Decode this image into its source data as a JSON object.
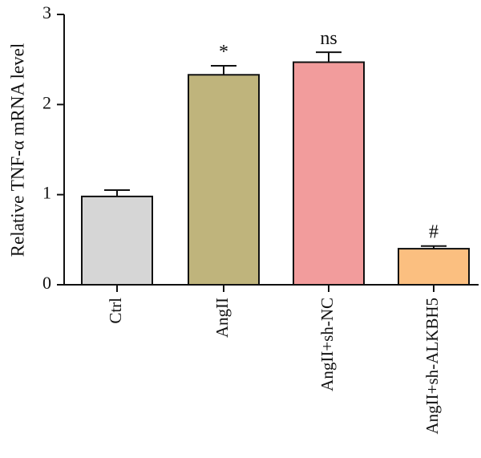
{
  "chart_data": {
    "type": "bar",
    "title": "",
    "xlabel": "",
    "ylabel": "Relative TNF-α mRNA level",
    "ylim": [
      0,
      3
    ],
    "yticks": [
      0,
      1,
      2,
      3
    ],
    "grid": false,
    "categories": [
      "Ctrl",
      "AngII",
      "AngII+sh-NC",
      "AngII+sh-ALKBH5"
    ],
    "values": [
      0.98,
      2.33,
      2.47,
      0.4
    ],
    "errors": [
      0.07,
      0.1,
      0.11,
      0.03
    ],
    "annotations": [
      "",
      "*",
      "ns",
      "#"
    ],
    "colors": [
      "#d6d6d6",
      "#bfb47c",
      "#f29c9c",
      "#fbbf80"
    ]
  }
}
